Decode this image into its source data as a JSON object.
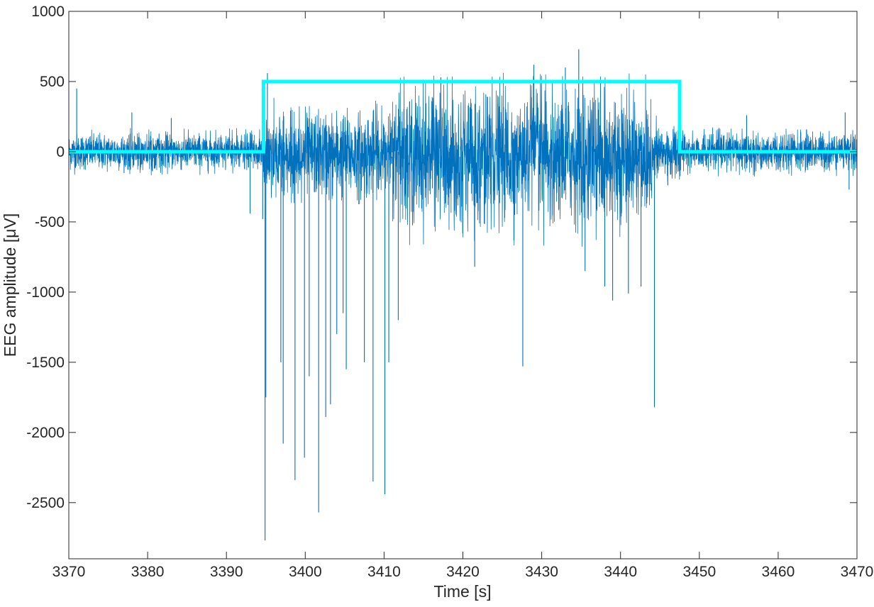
{
  "chart_data": {
    "type": "line",
    "xlabel": "Time [s]",
    "ylabel": "EEG amplitude [μV]",
    "xlim": [
      3370,
      3470
    ],
    "ylim": [
      -2900,
      1000
    ],
    "x_ticks": [
      3370,
      3380,
      3390,
      3400,
      3410,
      3420,
      3430,
      3440,
      3450,
      3460,
      3470
    ],
    "y_ticks": [
      -2500,
      -2000,
      -1500,
      -1000,
      -500,
      0,
      500,
      1000
    ],
    "grid": false,
    "box": true,
    "series": [
      {
        "kind": "eeg_signal",
        "color": "#0072bd",
        "segments": [
          {
            "x": [
              3370,
              3394.7
            ],
            "baseline": 0,
            "envelope": [
              -170,
              170
            ]
          },
          {
            "x": [
              3394.7,
              3411
            ],
            "baseline": -20,
            "envelope": [
              -380,
              420
            ]
          },
          {
            "x": [
              3411,
              3444
            ],
            "baseline": -30,
            "envelope": [
              -680,
              560
            ]
          },
          {
            "x": [
              3444,
              3447.5
            ],
            "baseline": -10,
            "envelope": [
              -280,
              300
            ]
          },
          {
            "x": [
              3447.5,
              3470
            ],
            "baseline": 0,
            "envelope": [
              -180,
              180
            ]
          }
        ],
        "spikes": [
          {
            "x": 3371,
            "y": 450
          },
          {
            "x": 3378,
            "y": 280
          },
          {
            "x": 3383,
            "y": 240
          },
          {
            "x": 3393,
            "y": -440
          },
          {
            "x": 3394.6,
            "y": -480
          },
          {
            "x": 3394.9,
            "y": -2770
          },
          {
            "x": 3395.0,
            "y": -1750
          },
          {
            "x": 3395.2,
            "y": 560
          },
          {
            "x": 3396.9,
            "y": -1500
          },
          {
            "x": 3397.2,
            "y": -2080
          },
          {
            "x": 3398.7,
            "y": -2340
          },
          {
            "x": 3399.9,
            "y": -2180
          },
          {
            "x": 3400.5,
            "y": -1600
          },
          {
            "x": 3401.7,
            "y": -2570
          },
          {
            "x": 3402.6,
            "y": -1890
          },
          {
            "x": 3403.2,
            "y": -1800
          },
          {
            "x": 3404.0,
            "y": -1300
          },
          {
            "x": 3404.8,
            "y": -1150
          },
          {
            "x": 3405.2,
            "y": -1550
          },
          {
            "x": 3407.5,
            "y": -1500
          },
          {
            "x": 3408.6,
            "y": -2350
          },
          {
            "x": 3410.1,
            "y": -2440
          },
          {
            "x": 3410.6,
            "y": -1500
          },
          {
            "x": 3411.8,
            "y": -1200
          },
          {
            "x": 3417.2,
            "y": 530
          },
          {
            "x": 3421.5,
            "y": -820
          },
          {
            "x": 3427.6,
            "y": -1530
          },
          {
            "x": 3429,
            "y": 620
          },
          {
            "x": 3433,
            "y": 600
          },
          {
            "x": 3434.7,
            "y": 730
          },
          {
            "x": 3435.5,
            "y": -850
          },
          {
            "x": 3438,
            "y": -960
          },
          {
            "x": 3439,
            "y": -1060
          },
          {
            "x": 3441,
            "y": -1010
          },
          {
            "x": 3442.6,
            "y": -960
          },
          {
            "x": 3444.3,
            "y": -1820
          },
          {
            "x": 3446,
            "y": -240
          },
          {
            "x": 3456,
            "y": 260
          },
          {
            "x": 3468.5,
            "y": 280
          },
          {
            "x": 3469,
            "y": -270
          }
        ]
      },
      {
        "kind": "seizure_marker",
        "color": "#00ffff",
        "x": [
          3370,
          3394.7,
          3394.7,
          3447.5,
          3447.5,
          3470
        ],
        "y": [
          0,
          0,
          500,
          500,
          0,
          0
        ]
      }
    ]
  }
}
